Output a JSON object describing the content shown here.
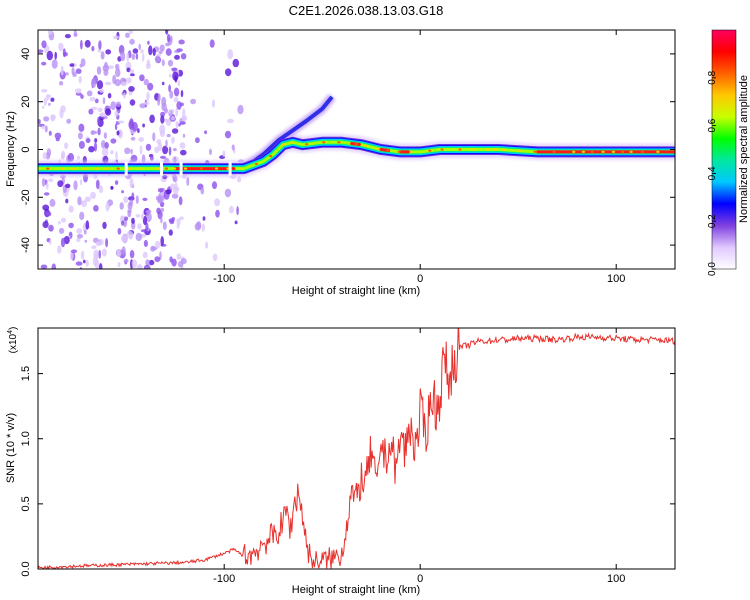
{
  "title": "C2E1.2026.038.13.03.G18",
  "chart_data": [
    {
      "type": "heatmap",
      "xlabel": "Height of straight line (km)",
      "ylabel": "Frequency (Hz)",
      "xlim": [
        -195,
        130
      ],
      "ylim": [
        -50,
        50
      ],
      "xticks": [
        -100,
        0,
        100
      ],
      "xtick_labels": [
        "-100",
        "0",
        "100"
      ],
      "yticks": [
        -40,
        -20,
        0,
        20,
        40
      ],
      "ytick_labels": [
        "-40",
        "-20",
        "0",
        "20",
        "40"
      ],
      "grid": false,
      "colorbar": {
        "label": "Normalized spectral amplitude",
        "range": [
          0,
          1
        ],
        "ticks": [
          0.0,
          0.2,
          0.4,
          0.6,
          0.8
        ],
        "tick_labels": [
          "0.0",
          "0.2",
          "0.4",
          "0.6",
          "0.8"
        ],
        "colormap": [
          "#ffffff",
          "#e0c8ff",
          "#8040e0",
          "#0000ff",
          "#00c8ff",
          "#00e8a0",
          "#00ff00",
          "#c8ff00",
          "#ffc800",
          "#ff6000",
          "#ff0000",
          "#ff0060"
        ]
      },
      "main_track": [
        {
          "x": -195,
          "y": -8
        },
        {
          "x": -120,
          "y": -8
        },
        {
          "x": -100,
          "y": -8
        },
        {
          "x": -90,
          "y": -8
        },
        {
          "x": -80,
          "y": -5
        },
        {
          "x": -75,
          "y": -2
        },
        {
          "x": -70,
          "y": 2
        },
        {
          "x": -65,
          "y": 3
        },
        {
          "x": -60,
          "y": 2
        },
        {
          "x": -50,
          "y": 3
        },
        {
          "x": -40,
          "y": 3
        },
        {
          "x": -30,
          "y": 2
        },
        {
          "x": -20,
          "y": 0
        },
        {
          "x": -10,
          "y": -1
        },
        {
          "x": 0,
          "y": -1
        },
        {
          "x": 10,
          "y": 0
        },
        {
          "x": 20,
          "y": 0
        },
        {
          "x": 40,
          "y": 0
        },
        {
          "x": 60,
          "y": -1
        },
        {
          "x": 80,
          "y": -1
        },
        {
          "x": 100,
          "y": -1
        },
        {
          "x": 130,
          "y": -1
        }
      ],
      "branch_track": [
        {
          "x": -90,
          "y": -8
        },
        {
          "x": -80,
          "y": -2
        },
        {
          "x": -72,
          "y": 4
        },
        {
          "x": -65,
          "y": 8
        },
        {
          "x": -58,
          "y": 12
        },
        {
          "x": -50,
          "y": 17
        },
        {
          "x": -45,
          "y": 22
        }
      ]
    },
    {
      "type": "line",
      "xlabel": "Height of straight line (km)",
      "ylabel": "SNR (10 * v/v)",
      "scale_note": "(x10^4)",
      "xlim": [
        -195,
        130
      ],
      "ylim": [
        0,
        1.85
      ],
      "xticks": [
        -100,
        0,
        100
      ],
      "xtick_labels": [
        "-100",
        "0",
        "100"
      ],
      "yticks": [
        0.0,
        0.5,
        1.0,
        1.5
      ],
      "ytick_labels": [
        "0.0",
        "0.5",
        "1.0",
        "1.5"
      ],
      "grid": false,
      "series": [
        {
          "color": "#e8302c",
          "x": [
            -195,
            -180,
            -160,
            -140,
            -120,
            -110,
            -100,
            -95,
            -90,
            -85,
            -80,
            -75,
            -72,
            -70,
            -68,
            -66,
            -64,
            -62,
            -60,
            -58,
            -56,
            -54,
            -50,
            -45,
            -40,
            -38,
            -35,
            -33,
            -30,
            -28,
            -25,
            -22,
            -20,
            -18,
            -15,
            -12,
            -10,
            -8,
            -5,
            -2,
            0,
            3,
            6,
            9,
            12,
            15,
            18,
            20,
            25,
            30,
            35,
            40,
            45,
            50,
            60,
            70,
            80,
            90,
            100,
            110,
            120,
            130
          ],
          "values": [
            0.01,
            0.02,
            0.03,
            0.04,
            0.05,
            0.07,
            0.12,
            0.15,
            0.1,
            0.12,
            0.2,
            0.25,
            0.3,
            0.35,
            0.45,
            0.3,
            0.52,
            0.6,
            0.4,
            0.2,
            0.08,
            0.05,
            0.06,
            0.08,
            0.12,
            0.3,
            0.6,
            0.5,
            0.7,
            0.65,
            0.9,
            0.6,
            1.0,
            0.85,
            0.95,
            0.75,
            1.05,
            0.9,
            1.1,
            0.9,
            1.2,
            1.05,
            1.35,
            1.2,
            1.6,
            1.45,
            1.65,
            1.7,
            1.72,
            1.75,
            1.75,
            1.76,
            1.76,
            1.77,
            1.77,
            1.76,
            1.78,
            1.78,
            1.77,
            1.76,
            1.76,
            1.75
          ]
        }
      ]
    }
  ]
}
